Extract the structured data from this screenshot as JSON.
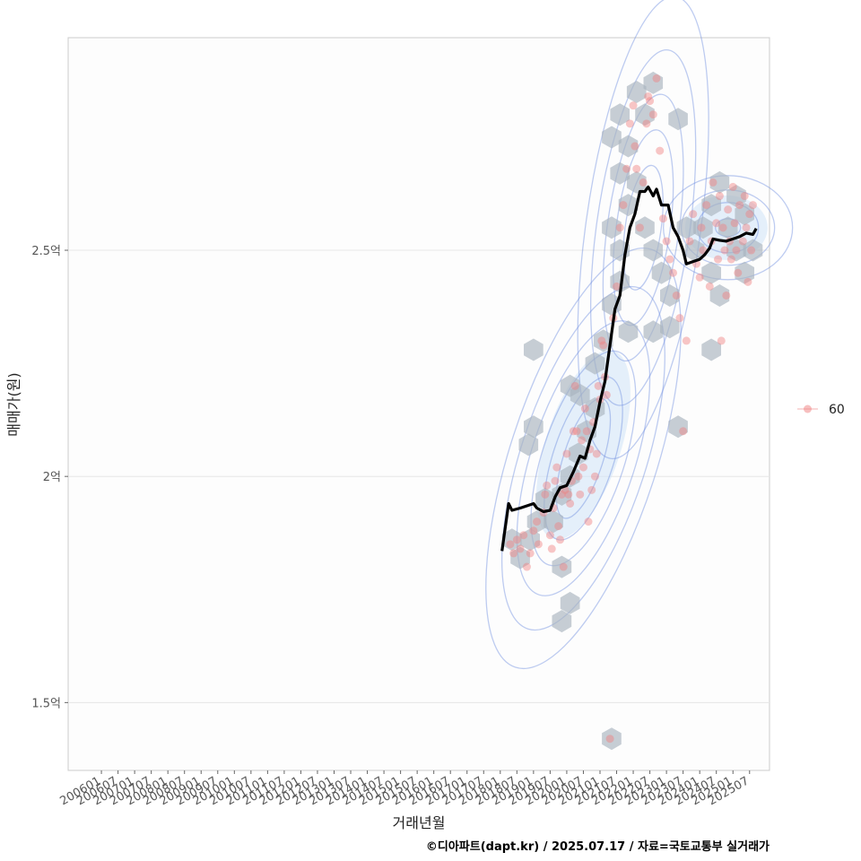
{
  "chart_data": {
    "type": "scatter",
    "xlabel": "거래년월",
    "ylabel": "매매가(원)",
    "caption": "©디아파트(dapt.kr) / 2025.07.17 / 자료=국토교통부 실거래가",
    "legend": {
      "position": "right",
      "entries": [
        {
          "label": "60",
          "color": "#f08080"
        }
      ]
    },
    "colors": {
      "line": "#000000",
      "points": "#f08080",
      "hex": "#a9b4bf",
      "contour": "#6f8fe0",
      "grid": "#e6e6e6",
      "panel_border": "#cccccc"
    },
    "x_ticks": [
      "200601",
      "200607",
      "200701",
      "200707",
      "200801",
      "200807",
      "200901",
      "200907",
      "201001",
      "201007",
      "201101",
      "201107",
      "201201",
      "201207",
      "201301",
      "201307",
      "201401",
      "201407",
      "201501",
      "201507",
      "201601",
      "201607",
      "201701",
      "201707",
      "201801",
      "201807",
      "201901",
      "201907",
      "202001",
      "202007",
      "202101",
      "202107",
      "202201",
      "202207",
      "202301",
      "202307",
      "202401",
      "202407",
      "202501",
      "202507"
    ],
    "y_ticks": [
      {
        "value": 1.5,
        "label": "1.5억"
      },
      {
        "value": 2.0,
        "label": "2억"
      },
      {
        "value": 2.5,
        "label": "2.5억"
      }
    ],
    "xlim": [
      2005.0,
      2026.1
    ],
    "ylim": [
      1.35,
      2.97
    ],
    "moving_average": [
      [
        2018.05,
        1.835
      ],
      [
        2018.25,
        1.94
      ],
      [
        2018.35,
        1.925
      ],
      [
        2018.6,
        1.93
      ],
      [
        2018.8,
        1.935
      ],
      [
        2019.0,
        1.94
      ],
      [
        2019.1,
        1.93
      ],
      [
        2019.3,
        1.922
      ],
      [
        2019.5,
        1.925
      ],
      [
        2019.65,
        1.955
      ],
      [
        2019.8,
        1.975
      ],
      [
        2020.0,
        1.98
      ],
      [
        2020.2,
        2.01
      ],
      [
        2020.4,
        2.045
      ],
      [
        2020.55,
        2.04
      ],
      [
        2020.7,
        2.08
      ],
      [
        2020.85,
        2.11
      ],
      [
        2021.0,
        2.165
      ],
      [
        2021.15,
        2.21
      ],
      [
        2021.3,
        2.29
      ],
      [
        2021.45,
        2.37
      ],
      [
        2021.6,
        2.4
      ],
      [
        2021.75,
        2.49
      ],
      [
        2021.9,
        2.55
      ],
      [
        2022.05,
        2.58
      ],
      [
        2022.2,
        2.63
      ],
      [
        2022.35,
        2.63
      ],
      [
        2022.45,
        2.64
      ],
      [
        2022.6,
        2.62
      ],
      [
        2022.7,
        2.635
      ],
      [
        2022.85,
        2.6
      ],
      [
        2023.05,
        2.6
      ],
      [
        2023.2,
        2.55
      ],
      [
        2023.35,
        2.53
      ],
      [
        2023.5,
        2.5
      ],
      [
        2023.6,
        2.47
      ],
      [
        2023.8,
        2.475
      ],
      [
        2024.0,
        2.48
      ],
      [
        2024.15,
        2.49
      ],
      [
        2024.3,
        2.505
      ],
      [
        2024.4,
        2.525
      ],
      [
        2024.6,
        2.522
      ],
      [
        2024.8,
        2.52
      ],
      [
        2025.0,
        2.525
      ],
      [
        2025.2,
        2.53
      ],
      [
        2025.4,
        2.538
      ],
      [
        2025.6,
        2.535
      ],
      [
        2025.7,
        2.548
      ]
    ],
    "trades": [
      [
        2018.3,
        1.85
      ],
      [
        2018.4,
        1.83
      ],
      [
        2018.5,
        1.86
      ],
      [
        2018.6,
        1.84
      ],
      [
        2018.7,
        1.87
      ],
      [
        2018.8,
        1.8
      ],
      [
        2018.9,
        1.83
      ],
      [
        2019.0,
        1.88
      ],
      [
        2019.1,
        1.9
      ],
      [
        2019.15,
        1.85
      ],
      [
        2019.3,
        1.92
      ],
      [
        2019.35,
        1.96
      ],
      [
        2019.4,
        1.98
      ],
      [
        2019.5,
        1.87
      ],
      [
        2019.55,
        1.84
      ],
      [
        2019.6,
        1.93
      ],
      [
        2019.65,
        1.99
      ],
      [
        2019.7,
        2.02
      ],
      [
        2019.75,
        1.89
      ],
      [
        2019.8,
        1.86
      ],
      [
        2019.85,
        1.96
      ],
      [
        2019.9,
        1.8
      ],
      [
        2019.95,
        1.97
      ],
      [
        2020.0,
        2.05
      ],
      [
        2020.05,
        1.96
      ],
      [
        2020.1,
        1.94
      ],
      [
        2020.15,
        1.99
      ],
      [
        2020.2,
        2.1
      ],
      [
        2020.25,
        2.2
      ],
      [
        2020.3,
        2.1
      ],
      [
        2020.35,
        2.0
      ],
      [
        2020.4,
        1.96
      ],
      [
        2020.45,
        2.08
      ],
      [
        2020.5,
        2.02
      ],
      [
        2020.55,
        2.15
      ],
      [
        2020.6,
        2.1
      ],
      [
        2020.65,
        1.9
      ],
      [
        2020.7,
        2.06
      ],
      [
        2020.75,
        1.97
      ],
      [
        2020.8,
        2.12
      ],
      [
        2020.85,
        2.0
      ],
      [
        2020.9,
        2.05
      ],
      [
        2020.95,
        2.2
      ],
      [
        2021.0,
        2.17
      ],
      [
        2021.05,
        2.3
      ],
      [
        2021.1,
        2.29
      ],
      [
        2021.15,
        2.22
      ],
      [
        2021.2,
        2.18
      ],
      [
        2021.3,
        1.42
      ],
      [
        2021.4,
        2.35
      ],
      [
        2021.5,
        2.42
      ],
      [
        2021.6,
        2.55
      ],
      [
        2021.7,
        2.6
      ],
      [
        2021.8,
        2.68
      ],
      [
        2021.9,
        2.78
      ],
      [
        2022.0,
        2.82
      ],
      [
        2022.05,
        2.73
      ],
      [
        2022.1,
        2.68
      ],
      [
        2022.2,
        2.55
      ],
      [
        2022.3,
        2.65
      ],
      [
        2022.4,
        2.78
      ],
      [
        2022.45,
        2.84
      ],
      [
        2022.5,
        2.83
      ],
      [
        2022.6,
        2.8
      ],
      [
        2022.7,
        2.88
      ],
      [
        2022.8,
        2.72
      ],
      [
        2022.9,
        2.57
      ],
      [
        2023.0,
        2.52
      ],
      [
        2023.1,
        2.48
      ],
      [
        2023.2,
        2.45
      ],
      [
        2023.3,
        2.4
      ],
      [
        2023.4,
        2.35
      ],
      [
        2023.5,
        2.1
      ],
      [
        2023.6,
        2.3
      ],
      [
        2023.7,
        2.52
      ],
      [
        2023.8,
        2.58
      ],
      [
        2023.9,
        2.47
      ],
      [
        2024.0,
        2.44
      ],
      [
        2024.05,
        2.55
      ],
      [
        2024.1,
        2.5
      ],
      [
        2024.2,
        2.6
      ],
      [
        2024.3,
        2.42
      ],
      [
        2024.35,
        2.52
      ],
      [
        2024.4,
        2.65
      ],
      [
        2024.5,
        2.56
      ],
      [
        2024.55,
        2.48
      ],
      [
        2024.6,
        2.62
      ],
      [
        2024.65,
        2.3
      ],
      [
        2024.7,
        2.55
      ],
      [
        2024.75,
        2.5
      ],
      [
        2024.8,
        2.4
      ],
      [
        2024.85,
        2.59
      ],
      [
        2024.9,
        2.52
      ],
      [
        2024.95,
        2.48
      ],
      [
        2025.0,
        2.64
      ],
      [
        2025.05,
        2.56
      ],
      [
        2025.1,
        2.5
      ],
      [
        2025.15,
        2.45
      ],
      [
        2025.2,
        2.6
      ],
      [
        2025.3,
        2.52
      ],
      [
        2025.35,
        2.62
      ],
      [
        2025.4,
        2.55
      ],
      [
        2025.45,
        2.43
      ],
      [
        2025.5,
        2.58
      ],
      [
        2025.55,
        2.5
      ],
      [
        2025.6,
        2.6
      ]
    ],
    "hex_bins": [
      [
        2018.35,
        1.86
      ],
      [
        2018.6,
        1.82
      ],
      [
        2018.9,
        1.86
      ],
      [
        2019.1,
        1.9
      ],
      [
        2019.35,
        1.95
      ],
      [
        2019.6,
        1.9
      ],
      [
        2019.85,
        1.96
      ],
      [
        2020.1,
        2.0
      ],
      [
        2020.35,
        2.05
      ],
      [
        2020.6,
        2.1
      ],
      [
        2020.85,
        2.15
      ],
      [
        2019.85,
        1.8
      ],
      [
        2020.1,
        1.72
      ],
      [
        2019.85,
        1.68
      ],
      [
        2018.85,
        2.07
      ],
      [
        2019.0,
        2.11
      ],
      [
        2019.0,
        2.28
      ],
      [
        2020.4,
        2.18
      ],
      [
        2020.1,
        2.2
      ],
      [
        2021.35,
        1.42
      ],
      [
        2020.85,
        2.25
      ],
      [
        2021.1,
        2.3
      ],
      [
        2021.35,
        2.38
      ],
      [
        2021.6,
        2.43
      ],
      [
        2021.85,
        2.32
      ],
      [
        2021.35,
        2.55
      ],
      [
        2021.6,
        2.5
      ],
      [
        2021.85,
        2.6
      ],
      [
        2021.6,
        2.67
      ],
      [
        2021.35,
        2.75
      ],
      [
        2021.6,
        2.8
      ],
      [
        2021.85,
        2.73
      ],
      [
        2022.1,
        2.65
      ],
      [
        2022.35,
        2.55
      ],
      [
        2022.6,
        2.5
      ],
      [
        2022.85,
        2.45
      ],
      [
        2023.1,
        2.4
      ],
      [
        2022.1,
        2.85
      ],
      [
        2022.35,
        2.8
      ],
      [
        2022.6,
        2.87
      ],
      [
        2023.35,
        2.79
      ],
      [
        2023.1,
        2.33
      ],
      [
        2022.6,
        2.32
      ],
      [
        2023.35,
        2.11
      ],
      [
        2023.6,
        2.55
      ],
      [
        2023.85,
        2.5
      ],
      [
        2024.1,
        2.55
      ],
      [
        2024.35,
        2.6
      ],
      [
        2024.6,
        2.65
      ],
      [
        2024.85,
        2.55
      ],
      [
        2025.1,
        2.5
      ],
      [
        2025.35,
        2.45
      ],
      [
        2025.6,
        2.5
      ],
      [
        2024.35,
        2.45
      ],
      [
        2024.6,
        2.4
      ],
      [
        2025.35,
        2.58
      ],
      [
        2025.1,
        2.62
      ],
      [
        2024.35,
        2.28
      ]
    ]
  }
}
